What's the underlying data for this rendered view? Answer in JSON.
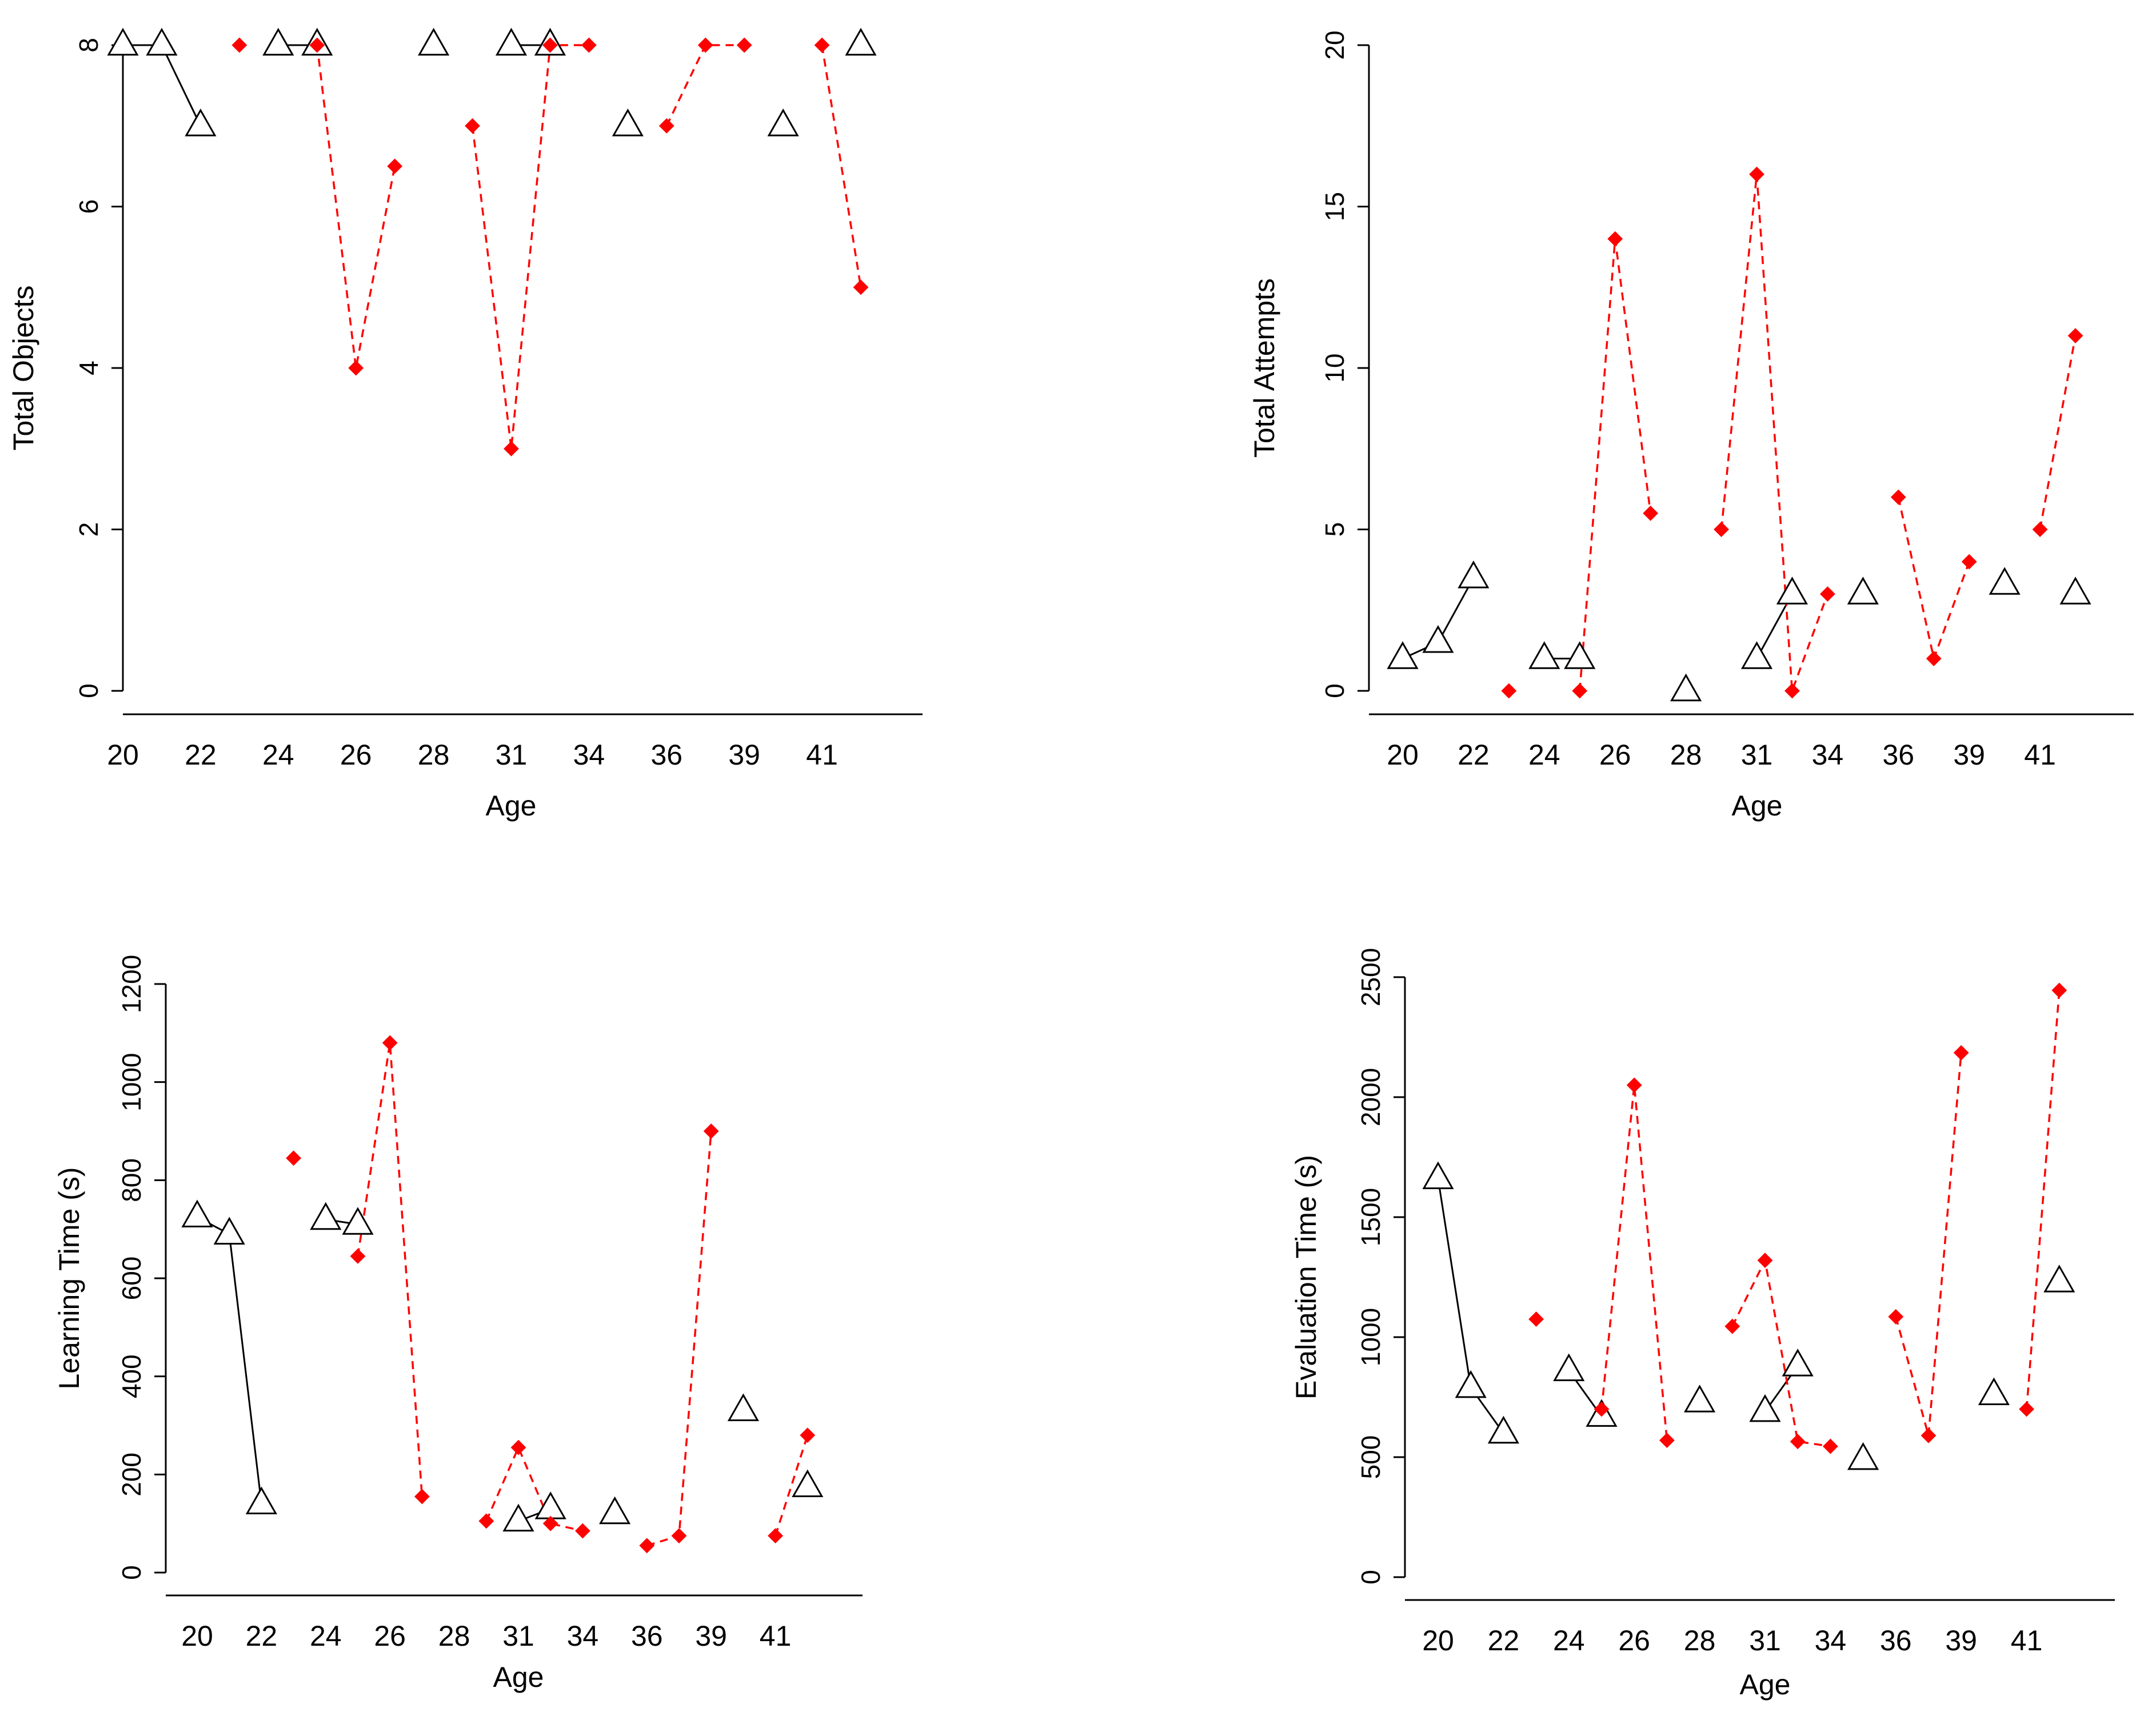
{
  "colors": {
    "series_a": "#000000",
    "series_b": "#ff0000",
    "triangle_fill": "#ffffff",
    "axis": "#000000"
  },
  "chart_data": [
    {
      "type": "scatter",
      "id": "total-objects",
      "title": "",
      "xlabel": "Age",
      "ylabel": "Total Objects",
      "xlim": [
        1,
        21
      ],
      "ylim": [
        0,
        8
      ],
      "x_ticks": [
        1,
        3,
        5,
        7,
        9,
        11,
        13,
        15,
        17,
        19
      ],
      "x_tick_labels": [
        "20",
        "22",
        "24",
        "26",
        "28",
        "31",
        "34",
        "36",
        "39",
        "41"
      ],
      "y_ticks": [
        0,
        2,
        4,
        6,
        8
      ],
      "y_tick_labels": [
        "0",
        "2",
        "4",
        "6",
        "8"
      ],
      "series": [
        {
          "name": "triangles (solid)",
          "marker": "open-triangle",
          "line": "solid",
          "color": "#000000",
          "points": [
            [
              1.0,
              8.0
            ],
            [
              2.0,
              8.0
            ],
            [
              3.0,
              7.0
            ],
            null,
            [
              5.0,
              8.0
            ],
            [
              6.0,
              8.0
            ],
            null,
            [
              9.0,
              8.0
            ],
            null,
            [
              11.0,
              8.0
            ],
            [
              12.0,
              8.0
            ],
            null,
            [
              14.0,
              7.0
            ],
            null,
            [
              18.0,
              7.0
            ],
            null,
            [
              20.0,
              8.0
            ]
          ]
        },
        {
          "name": "diamonds (dashed)",
          "marker": "filled-diamond",
          "line": "dashed",
          "color": "#ff0000",
          "points": [
            [
              4.0,
              8.0
            ],
            null,
            [
              6.0,
              8.0
            ],
            [
              7.0,
              4.0
            ],
            [
              8.0,
              6.5
            ],
            null,
            [
              10.0,
              7.0
            ],
            [
              11.0,
              3.0
            ],
            [
              12.0,
              8.0
            ],
            [
              13.0,
              8.0
            ],
            null,
            [
              15.0,
              7.0
            ],
            [
              16.0,
              8.0
            ],
            [
              17.0,
              8.0
            ],
            null,
            [
              19.0,
              8.0
            ],
            [
              20.0,
              5.0
            ]
          ]
        }
      ]
    },
    {
      "type": "scatter",
      "id": "total-attempts",
      "title": "",
      "xlabel": "Age",
      "ylabel": "Total Attempts",
      "xlim": [
        1,
        21
      ],
      "ylim": [
        0,
        20
      ],
      "x_ticks": [
        1,
        3,
        5,
        7,
        9,
        11,
        13,
        15,
        17,
        19
      ],
      "x_tick_labels": [
        "20",
        "22",
        "24",
        "26",
        "28",
        "31",
        "34",
        "36",
        "39",
        "41"
      ],
      "y_ticks": [
        0,
        5,
        10,
        15,
        20
      ],
      "y_tick_labels": [
        "0",
        "5",
        "10",
        "15",
        "20"
      ],
      "series": [
        {
          "name": "triangles (solid)",
          "marker": "open-triangle",
          "line": "solid",
          "color": "#000000",
          "points": [
            [
              1.0,
              1.0
            ],
            [
              2.0,
              1.5
            ],
            [
              3.0,
              3.5
            ],
            null,
            [
              5.0,
              1.0
            ],
            [
              6.0,
              1.0
            ],
            null,
            [
              9.0,
              0.0
            ],
            null,
            [
              11.0,
              1.0
            ],
            [
              12.0,
              3.0
            ],
            null,
            [
              14.0,
              3.0
            ],
            null,
            [
              18.0,
              3.3
            ],
            null,
            [
              20.0,
              3.0
            ]
          ]
        },
        {
          "name": "diamonds (dashed)",
          "marker": "filled-diamond",
          "line": "dashed",
          "color": "#ff0000",
          "points": [
            [
              4.0,
              0.0
            ],
            null,
            [
              6.0,
              0.0
            ],
            [
              7.0,
              14.0
            ],
            [
              8.0,
              5.5
            ],
            null,
            [
              10.0,
              5.0
            ],
            [
              11.0,
              16.0
            ],
            [
              12.0,
              0.0
            ],
            [
              13.0,
              3.0
            ],
            null,
            [
              15.0,
              6.0
            ],
            [
              16.0,
              1.0
            ],
            [
              17.0,
              4.0
            ],
            null,
            [
              19.0,
              5.0
            ],
            [
              20.0,
              11.0
            ]
          ]
        }
      ]
    },
    {
      "type": "scatter",
      "id": "learning-time",
      "title": "",
      "xlabel": "Age",
      "ylabel": "Learning Time (s)",
      "xlim": [
        1,
        21
      ],
      "ylim": [
        0,
        1200
      ],
      "x_ticks": [
        1,
        3,
        5,
        7,
        9,
        11,
        13,
        15,
        17,
        19
      ],
      "x_tick_labels": [
        "20",
        "22",
        "24",
        "26",
        "28",
        "31",
        "34",
        "36",
        "39",
        "41"
      ],
      "y_ticks": [
        0,
        200,
        400,
        600,
        800,
        1000,
        1200
      ],
      "y_tick_labels": [
        "0",
        "200",
        "400",
        "600",
        "800",
        "1000",
        "1200"
      ],
      "series": [
        {
          "name": "triangles (solid)",
          "marker": "open-triangle",
          "line": "solid",
          "color": "#000000",
          "points": [
            [
              1.0,
              725
            ],
            [
              2.0,
              690
            ],
            [
              3.0,
              140
            ],
            null,
            [
              5.0,
              720
            ],
            [
              6.0,
              710
            ],
            null,
            [
              11.0,
              105
            ],
            [
              12.0,
              130
            ],
            null,
            [
              14.0,
              120
            ],
            null,
            [
              18.0,
              330
            ],
            null,
            [
              20.0,
              175
            ]
          ]
        },
        {
          "name": "diamonds (dashed)",
          "marker": "filled-diamond",
          "line": "dashed",
          "color": "#ff0000",
          "points": [
            [
              4.0,
              845
            ],
            null,
            [
              6.0,
              645
            ],
            [
              7.0,
              1080
            ],
            [
              8.0,
              155
            ],
            null,
            [
              10.0,
              105
            ],
            [
              11.0,
              255
            ],
            [
              12.0,
              100
            ],
            [
              13.0,
              85
            ],
            null,
            [
              15.0,
              55
            ],
            [
              16.0,
              75
            ],
            [
              17.0,
              900
            ],
            null,
            [
              19.0,
              75
            ],
            [
              20.0,
              280
            ]
          ]
        }
      ]
    },
    {
      "type": "scatter",
      "id": "evaluation-time",
      "title": "",
      "xlabel": "Age",
      "ylabel": "Evaluation Time (s)",
      "xlim": [
        1,
        21
      ],
      "ylim": [
        0,
        2500
      ],
      "x_ticks": [
        1,
        3,
        5,
        7,
        9,
        11,
        13,
        15,
        17,
        19
      ],
      "x_tick_labels": [
        "20",
        "22",
        "24",
        "26",
        "28",
        "31",
        "34",
        "36",
        "39",
        "41"
      ],
      "y_ticks": [
        0,
        500,
        1000,
        1500,
        2000,
        2500
      ],
      "y_tick_labels": [
        "0",
        "500",
        "1000",
        "1500",
        "2000",
        "2500"
      ],
      "series": [
        {
          "name": "triangles (solid)",
          "marker": "open-triangle",
          "line": "solid",
          "color": "#000000",
          "points": [
            [
              1.0,
              1660
            ],
            [
              2.0,
              790
            ],
            [
              3.0,
              600
            ],
            null,
            [
              5.0,
              860
            ],
            [
              6.0,
              670
            ],
            null,
            [
              9.0,
              730
            ],
            null,
            [
              11.0,
              690
            ],
            [
              12.0,
              880
            ],
            null,
            [
              14.0,
              490
            ],
            null,
            [
              18.0,
              760
            ],
            null,
            [
              20.0,
              1230
            ]
          ]
        },
        {
          "name": "diamonds (dashed)",
          "marker": "filled-diamond",
          "line": "dashed",
          "color": "#ff0000",
          "points": [
            [
              4.0,
              1075
            ],
            null,
            [
              6.0,
              700
            ],
            [
              7.0,
              2050
            ],
            [
              8.0,
              570
            ],
            null,
            [
              10.0,
              1045
            ],
            [
              11.0,
              1320
            ],
            [
              12.0,
              565
            ],
            [
              13.0,
              545
            ],
            null,
            [
              15.0,
              1085
            ],
            [
              16.0,
              590
            ],
            [
              17.0,
              2185
            ],
            null,
            [
              19.0,
              700
            ],
            [
              20.0,
              2445
            ]
          ]
        }
      ]
    }
  ]
}
